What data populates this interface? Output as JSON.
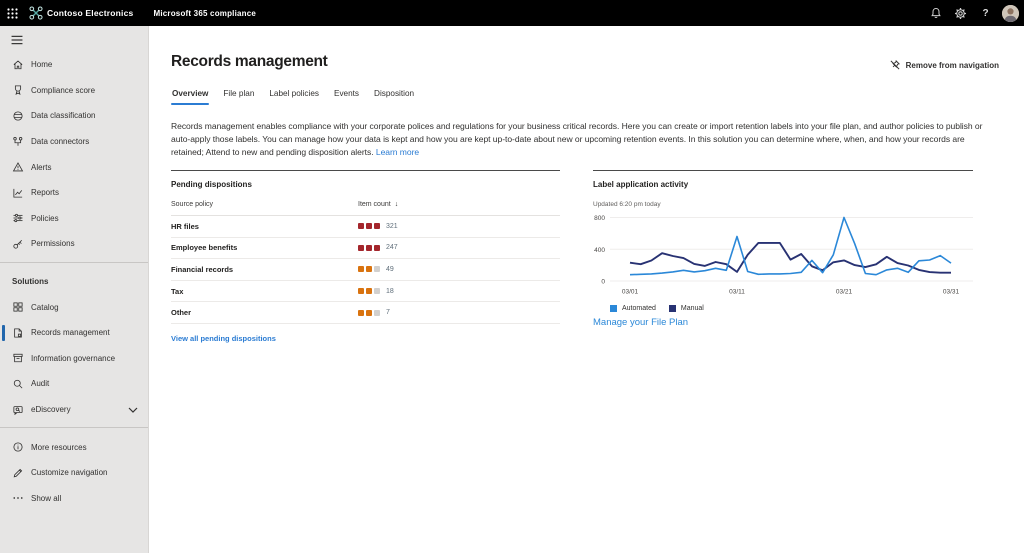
{
  "topbar": {
    "brand": "Contoso Electronics",
    "app_title": "Microsoft 365 compliance",
    "help_glyph": "?"
  },
  "sidebar": {
    "items": [
      {
        "label": "Home",
        "icon": "home-icon"
      },
      {
        "label": "Compliance score",
        "icon": "compliance-score-icon"
      },
      {
        "label": "Data classification",
        "icon": "data-classification-icon"
      },
      {
        "label": "Data connectors",
        "icon": "data-connectors-icon"
      },
      {
        "label": "Alerts",
        "icon": "alerts-icon"
      },
      {
        "label": "Reports",
        "icon": "reports-icon"
      },
      {
        "label": "Policies",
        "icon": "policies-icon"
      },
      {
        "label": "Permissions",
        "icon": "permissions-icon"
      }
    ],
    "solutions_header": "Solutions",
    "solutions": [
      {
        "label": "Catalog",
        "icon": "catalog-icon"
      },
      {
        "label": "Records management",
        "icon": "records-management-icon",
        "selected": true
      },
      {
        "label": "Information governance",
        "icon": "information-governance-icon"
      },
      {
        "label": "Audit",
        "icon": "audit-icon"
      },
      {
        "label": "eDiscovery",
        "icon": "ediscovery-icon",
        "expandable": true
      }
    ],
    "footer": [
      {
        "label": "More resources",
        "icon": "more-resources-icon"
      },
      {
        "label": "Customize navigation",
        "icon": "customize-navigation-icon"
      },
      {
        "label": "Show all",
        "icon": "show-all-icon"
      }
    ]
  },
  "main": {
    "title": "Records management",
    "remove_from_navigation": "Remove from navigation",
    "tabs": [
      {
        "label": "Overview",
        "selected": true
      },
      {
        "label": "File plan",
        "selected": false
      },
      {
        "label": "Label policies",
        "selected": false
      },
      {
        "label": "Events",
        "selected": false
      },
      {
        "label": "Disposition",
        "selected": false
      }
    ],
    "description": "Records management enables compliance with your corporate polices and regulations for your business critical records. Here you can create or import retention labels into your file plan, and author policies to publish or auto-apply those labels. You can manage how your data is kept and how you are kept up-to-date about new or upcoming retention events. In this solution you can determine where, when, and how your records are retained; Attend to new and pending disposition alerts.",
    "learn_more": "Learn more"
  },
  "pending_dispositions": {
    "title": "Pending dispositions",
    "columns": {
      "policy": "Source policy",
      "count": "Item count"
    },
    "sort_icon": "↓",
    "rows": [
      {
        "policy": "HR files",
        "count": "321",
        "boxes": [
          "#a4262c",
          "#a4262c",
          "#a4262c"
        ]
      },
      {
        "policy": "Employee benefits",
        "count": "247",
        "boxes": [
          "#a4262c",
          "#a4262c",
          "#a4262c"
        ]
      },
      {
        "policy": "Financial records",
        "count": "49",
        "boxes": [
          "#d9730f",
          "#d9730f",
          "#d2d0ce"
        ]
      },
      {
        "policy": "Tax",
        "count": "18",
        "boxes": [
          "#d9730f",
          "#d9730f",
          "#d2d0ce"
        ]
      },
      {
        "policy": "Other",
        "count": "7",
        "boxes": [
          "#d9730f",
          "#d9730f",
          "#d2d0ce"
        ]
      }
    ],
    "view_all_link": "View all pending dispositions"
  },
  "label_activity": {
    "title": "Label application activity",
    "updated": "Updated 6:20 pm today",
    "manage_link": "Manage your File Plan"
  },
  "chart_data": {
    "type": "line",
    "title": "Label application activity",
    "x_tick_labels": [
      "03/01",
      "03/11",
      "03/21",
      "03/31"
    ],
    "x_tick_days": [
      1,
      11,
      21,
      31
    ],
    "days": 31,
    "ylim": [
      0,
      800
    ],
    "y_ticks": [
      0,
      400,
      800
    ],
    "grid": true,
    "legend_position": "bottom",
    "series": [
      {
        "name": "Automated",
        "color": "#2b88d8",
        "values": [
          80,
          85,
          90,
          100,
          115,
          135,
          115,
          130,
          160,
          135,
          560,
          120,
          85,
          90,
          90,
          95,
          110,
          260,
          105,
          330,
          800,
          470,
          95,
          80,
          140,
          160,
          110,
          255,
          265,
          320,
          225
        ]
      },
      {
        "name": "Manual",
        "color": "#283273",
        "values": [
          230,
          212,
          258,
          350,
          315,
          288,
          215,
          190,
          240,
          212,
          115,
          330,
          480,
          480,
          480,
          270,
          340,
          185,
          135,
          235,
          260,
          200,
          175,
          210,
          305,
          225,
          195,
          140,
          112,
          105,
          105
        ]
      }
    ]
  },
  "colors": {
    "accent": "#2b7cd3",
    "topbar_bg": "#000000",
    "sidebar_bg": "#e7e6e5",
    "selected_bar": "#2266ac",
    "severity_high": "#a4262c",
    "severity_medium": "#d9730f",
    "severity_empty": "#d2d0ce"
  }
}
